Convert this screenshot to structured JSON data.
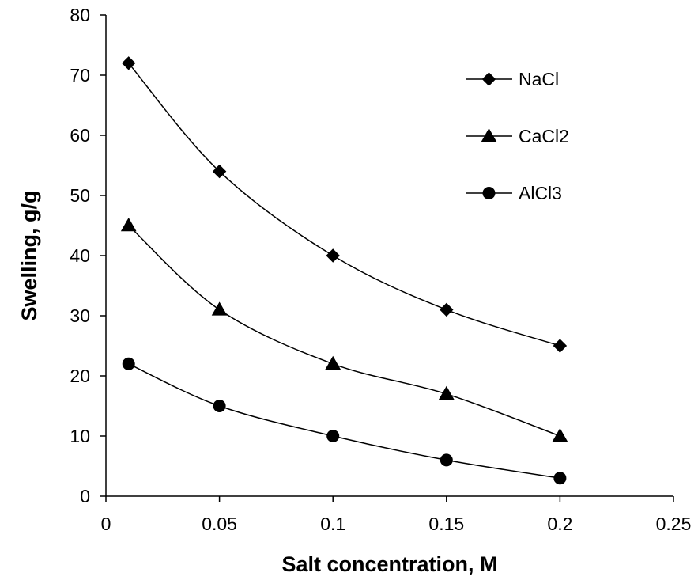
{
  "chart_data": {
    "type": "line",
    "title": "",
    "xlabel": "Salt concentration, M",
    "ylabel": "Swelling, g/g",
    "xlim": [
      0,
      0.25
    ],
    "ylim": [
      0,
      80
    ],
    "x_ticks": [
      "0",
      "0.05",
      "0.1",
      "0.15",
      "0.2",
      "0.25"
    ],
    "y_ticks": [
      "0",
      "10",
      "20",
      "30",
      "40",
      "50",
      "60",
      "70",
      "80"
    ],
    "x_tick_values": [
      0,
      0.05,
      0.1,
      0.15,
      0.2,
      0.25
    ],
    "y_tick_values": [
      0,
      10,
      20,
      30,
      40,
      50,
      60,
      70,
      80
    ],
    "grid": false,
    "legend_position": "top-right",
    "smooth": true,
    "series": [
      {
        "name": "NaCl",
        "marker": "diamond",
        "color": "#000000",
        "x": [
          0.01,
          0.05,
          0.1,
          0.15,
          0.2
        ],
        "y": [
          72,
          54,
          40,
          31,
          25
        ]
      },
      {
        "name": "CaCl2",
        "marker": "triangle",
        "color": "#000000",
        "x": [
          0.01,
          0.05,
          0.1,
          0.15,
          0.2
        ],
        "y": [
          45,
          31,
          22,
          17,
          10
        ]
      },
      {
        "name": "AlCl3",
        "marker": "circle",
        "color": "#000000",
        "x": [
          0.01,
          0.05,
          0.1,
          0.15,
          0.2
        ],
        "y": [
          22,
          15,
          10,
          6,
          3
        ]
      }
    ]
  }
}
